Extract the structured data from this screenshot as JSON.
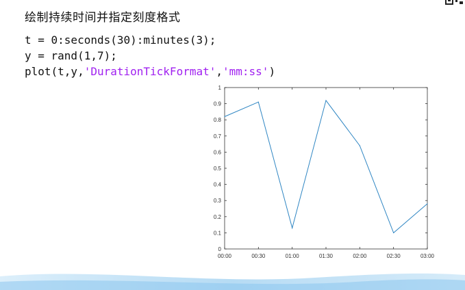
{
  "slide": {
    "heading": "绘制持续时间并指定刻度格式"
  },
  "code": {
    "line1": "t = 0:seconds(30):minutes(3);",
    "line2": "y = rand(1,7);",
    "line3_prefix": "plot(t,y,",
    "line3_str1": "'DurationTickFormat'",
    "line3_comma": ",",
    "line3_str2": "'mm:ss'",
    "line3_suffix": ")"
  },
  "colors": {
    "line": "#2f86c3",
    "string": "#a020f0",
    "axes": "#333333"
  },
  "chart_data": {
    "type": "line",
    "x": [
      "00:00",
      "00:30",
      "01:00",
      "01:30",
      "02:00",
      "02:30",
      "03:00"
    ],
    "series": [
      {
        "values": [
          0.82,
          0.91,
          0.13,
          0.92,
          0.64,
          0.1,
          0.28
        ]
      }
    ],
    "ylim": [
      0,
      1
    ],
    "yticks": [
      "0",
      "0.1",
      "0.2",
      "0.3",
      "0.4",
      "0.5",
      "0.6",
      "0.7",
      "0.8",
      "0.9",
      "1"
    ],
    "xticks": [
      "00:00",
      "00:30",
      "01:00",
      "01:30",
      "02:00",
      "02:30",
      "03:00"
    ],
    "grid": false
  }
}
